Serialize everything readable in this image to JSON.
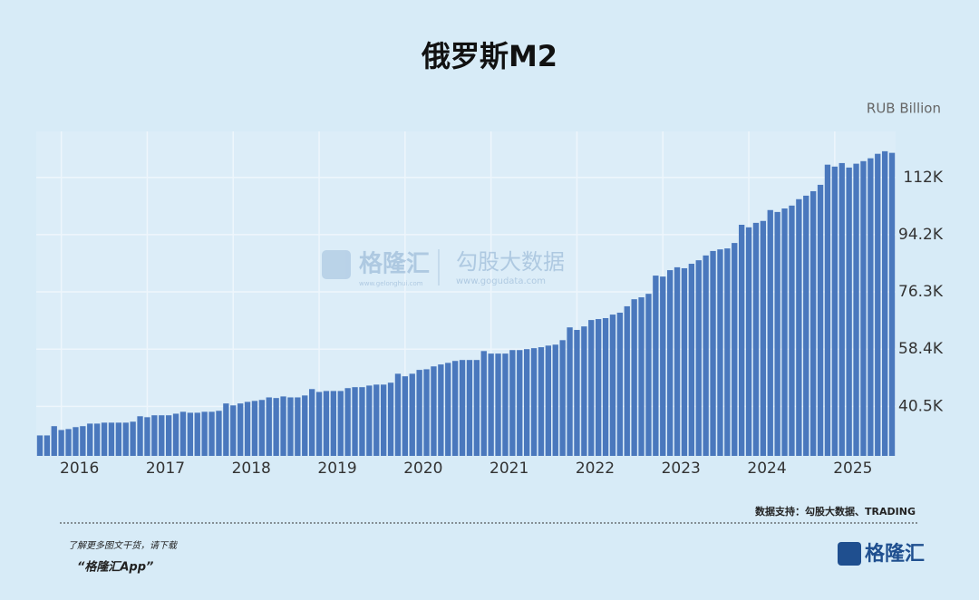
{
  "chart_data": {
    "type": "bar",
    "title": "俄罗斯M2",
    "unit_label": "RUB Billion",
    "categories": [
      null,
      null,
      null,
      "2016",
      null,
      null,
      null,
      null,
      null,
      null,
      null,
      null,
      null,
      null,
      null,
      "2017",
      null,
      null,
      null,
      null,
      null,
      null,
      null,
      null,
      null,
      null,
      null,
      "2018",
      null,
      null,
      null,
      null,
      null,
      null,
      null,
      null,
      null,
      null,
      null,
      "2019",
      null,
      null,
      null,
      null,
      null,
      null,
      null,
      null,
      null,
      null,
      null,
      "2020",
      null,
      null,
      null,
      null,
      null,
      null,
      null,
      null,
      null,
      null,
      null,
      "2021",
      null,
      null,
      null,
      null,
      null,
      null,
      null,
      null,
      null,
      null,
      null,
      "2022",
      null,
      null,
      null,
      null,
      null,
      null,
      null,
      null,
      null,
      null,
      null,
      "2023",
      null,
      null,
      null,
      null,
      null,
      null,
      null,
      null,
      null,
      null,
      null,
      "2024",
      null,
      null,
      null,
      null,
      null,
      null,
      null,
      null,
      null,
      null,
      null,
      "2025",
      null,
      null,
      null,
      null,
      null,
      null,
      null,
      null
    ],
    "values": [
      31400,
      31400,
      34300,
      33100,
      33400,
      34000,
      34300,
      35100,
      35100,
      35400,
      35400,
      35400,
      35400,
      35700,
      37400,
      37100,
      37700,
      37700,
      37700,
      38200,
      38800,
      38500,
      38500,
      38800,
      38800,
      39100,
      41400,
      40800,
      41400,
      41900,
      42200,
      42500,
      43300,
      43100,
      43600,
      43300,
      43300,
      43900,
      45900,
      45000,
      45300,
      45300,
      45300,
      46200,
      46500,
      46500,
      47000,
      47300,
      47300,
      47900,
      50700,
      49900,
      50700,
      51900,
      52100,
      53000,
      53600,
      54100,
      54700,
      55000,
      55000,
      55000,
      57800,
      57000,
      57000,
      57000,
      58100,
      58100,
      58400,
      58700,
      59000,
      59500,
      59800,
      61200,
      65200,
      64400,
      65500,
      67500,
      67800,
      68100,
      69200,
      69800,
      71800,
      74000,
      74600,
      75700,
      81400,
      81100,
      83100,
      84000,
      83700,
      85100,
      86200,
      87700,
      89100,
      89600,
      89900,
      91600,
      97300,
      96500,
      97900,
      98500,
      101900,
      101300,
      102400,
      103300,
      105300,
      106400,
      107800,
      109800,
      116100,
      115500,
      116600,
      115200,
      116400,
      117200,
      118100,
      119500,
      120300,
      119800
    ],
    "color": "#4a78bd",
    "ylim": [
      25000,
      126500
    ],
    "yticks": [
      {
        "value": 40500,
        "label": "40.5K"
      },
      {
        "value": 58400,
        "label": "58.4K"
      },
      {
        "value": 76300,
        "label": "76.3K"
      },
      {
        "value": 94200,
        "label": "94.2K"
      },
      {
        "value": 112100,
        "label": "112K"
      }
    ],
    "grid": true,
    "y_axis_side": "right"
  },
  "source": "数据支持：勾股大数据、TRADING",
  "footer_note": "了解更多图文干货，请下载",
  "footer_app": "“格隆汇App”",
  "logo_text": "格隆汇",
  "watermark": {
    "brand": "格隆汇",
    "brand_url": "www.gelonghui.com",
    "partner": "勾股大数据",
    "partner_url": "www.gogudata.com"
  }
}
